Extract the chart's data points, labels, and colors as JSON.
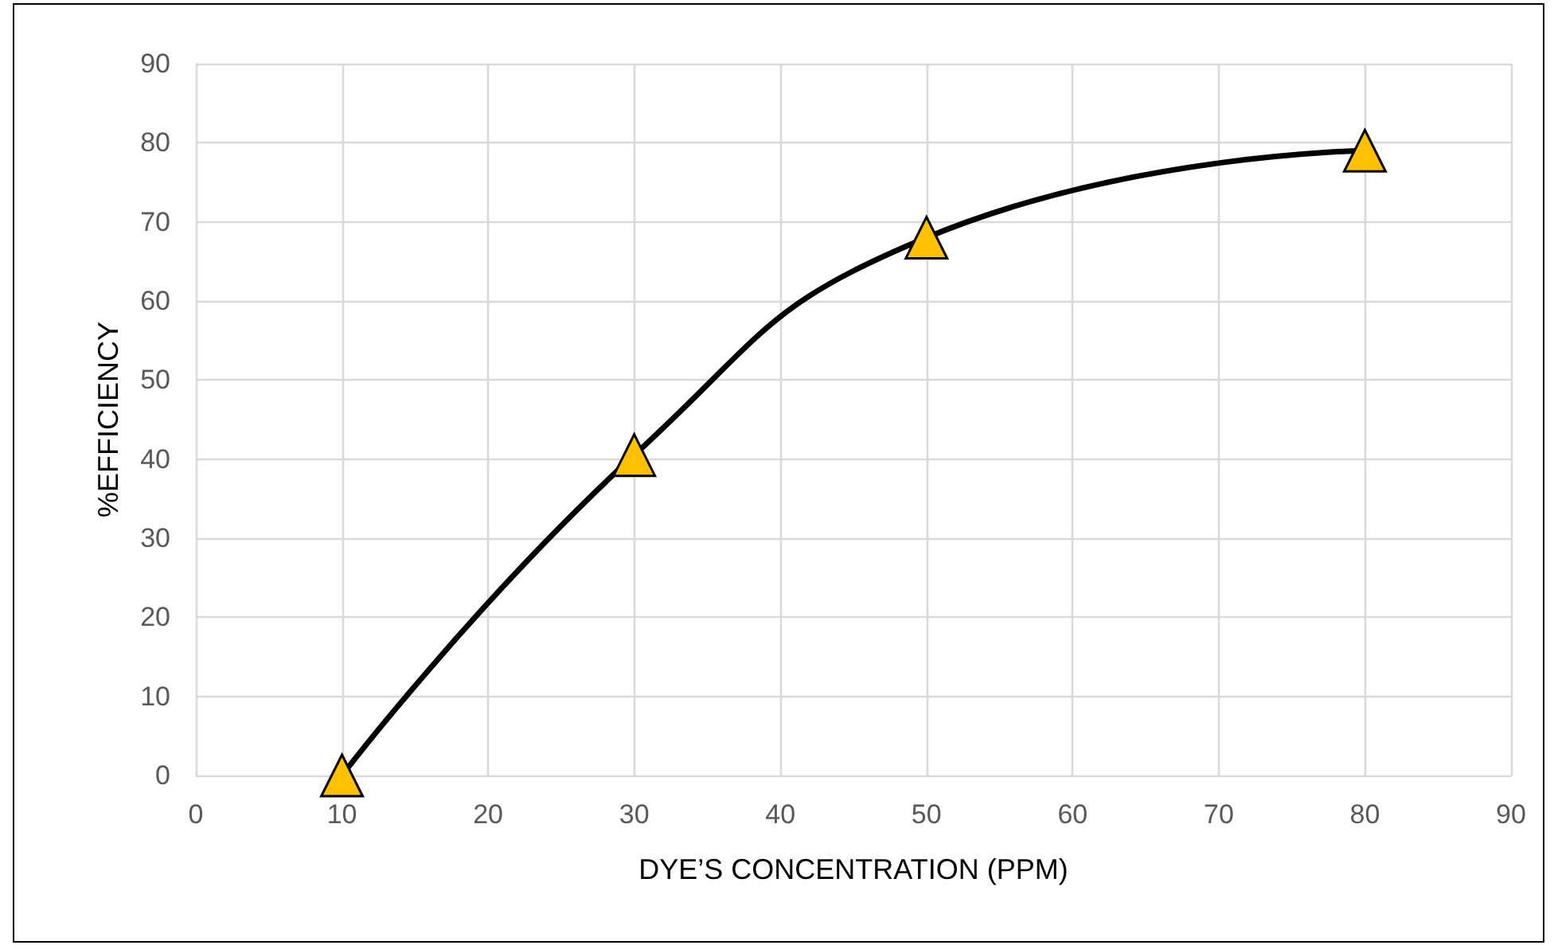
{
  "chart_data": {
    "type": "line",
    "xlabel": "DYE’S CONCENTRATION (PPM)",
    "ylabel": "%EFFICIENCY",
    "x": [
      10,
      30,
      50,
      80
    ],
    "series": [
      {
        "color": "#ffc000",
        "values": [
          0,
          40.5,
          68,
          79
        ]
      }
    ],
    "marker": "triangle",
    "line_style": "solid",
    "xlim": [
      0,
      90
    ],
    "xticks": [
      0,
      10,
      20,
      30,
      40,
      50,
      60,
      70,
      80,
      90
    ],
    "ylim": [
      0,
      90
    ],
    "yticks": [
      0,
      10,
      20,
      30,
      40,
      50,
      60,
      70,
      80,
      90
    ],
    "grid": true
  }
}
